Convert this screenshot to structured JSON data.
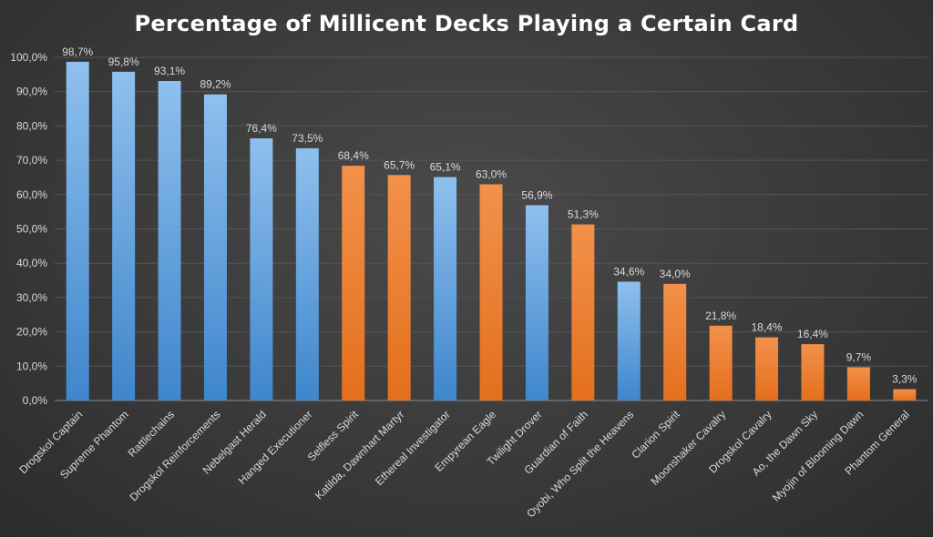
{
  "chart_data": {
    "type": "bar",
    "title": "Percentage of Millicent Decks Playing a Certain Card",
    "xlabel": "",
    "ylabel": "",
    "ylim": [
      0,
      100
    ],
    "yticks": [
      "0,0%",
      "10,0%",
      "20,0%",
      "30,0%",
      "40,0%",
      "50,0%",
      "60,0%",
      "70,0%",
      "80,0%",
      "90,0%",
      "100,0%"
    ],
    "grid": true,
    "legend": "none",
    "colors": {
      "blue": "#5b9bd5",
      "orange": "#ed7d31"
    },
    "categories": [
      "Drogskol Captain",
      "Supreme Phantom",
      "Rattlechains",
      "Drogskol Reinforcements",
      "Nebelgast Herald",
      "Hanged Executioner",
      "Selfless Spirit",
      "Katilda, Dawnhart Martyr",
      "Ethereal Investigator",
      "Empyrean Eagle",
      "Twilight Drover",
      "Guardian of Faith",
      "Oyobi, Who Split the Heavens",
      "Clarion Spirit",
      "Moonshaker Cavalry",
      "Drogskol Cavalry",
      "Ao, the Dawn Sky",
      "Myojin of Blooming Dawn",
      "Phantom General"
    ],
    "values": [
      98.7,
      95.8,
      93.1,
      89.2,
      76.4,
      73.5,
      68.4,
      65.7,
      65.1,
      63.0,
      56.9,
      51.3,
      34.6,
      34.0,
      21.8,
      18.4,
      16.4,
      9.7,
      3.3
    ],
    "data_labels": [
      "98,7%",
      "95,8%",
      "93,1%",
      "89,2%",
      "76,4%",
      "73,5%",
      "68,4%",
      "65,7%",
      "65,1%",
      "63,0%",
      "56,9%",
      "51,3%",
      "34,6%",
      "34,0%",
      "21,8%",
      "18,4%",
      "16,4%",
      "9,7%",
      "3,3%"
    ],
    "bar_colors": [
      "blue",
      "blue",
      "blue",
      "blue",
      "blue",
      "blue",
      "orange",
      "orange",
      "blue",
      "orange",
      "blue",
      "orange",
      "blue",
      "orange",
      "orange",
      "orange",
      "orange",
      "orange",
      "orange"
    ]
  }
}
